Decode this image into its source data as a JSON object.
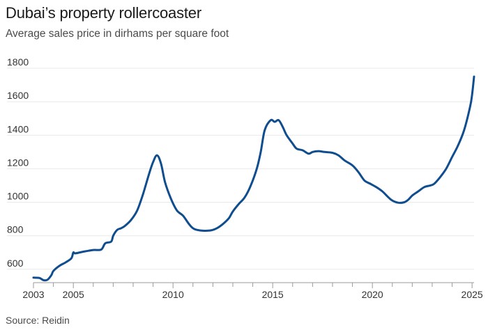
{
  "chart_data": {
    "type": "line",
    "title": "Dubai’s property rollercoaster",
    "subtitle": "Average sales price in dirhams per square foot",
    "source": "Source: Reidin",
    "xlabel": "",
    "ylabel": "",
    "ylim": [
      520,
      1800
    ],
    "xlim": [
      2003,
      2025.1
    ],
    "y_ticks": [
      600,
      800,
      1000,
      1200,
      1400,
      1600,
      1800
    ],
    "x_ticks": [
      {
        "label": "2003",
        "value": 2003
      },
      {
        "label": "2005",
        "value": 2005
      },
      {
        "label": "2010",
        "value": 2010
      },
      {
        "label": "2015",
        "value": 2015
      },
      {
        "label": "2020",
        "value": 2020
      },
      {
        "label": "2025",
        "value": 2025
      }
    ],
    "grid": true,
    "legend": "none",
    "color": "#0f4d8f",
    "series": [
      {
        "values": [
          [
            2003.0,
            550
          ],
          [
            2003.3,
            548
          ],
          [
            2003.5,
            535
          ],
          [
            2003.7,
            537
          ],
          [
            2003.9,
            565
          ],
          [
            2004.0,
            590
          ],
          [
            2004.3,
            620
          ],
          [
            2004.6,
            640
          ],
          [
            2004.9,
            665
          ],
          [
            2005.0,
            700
          ],
          [
            2005.1,
            695
          ],
          [
            2005.5,
            705
          ],
          [
            2006.0,
            715
          ],
          [
            2006.4,
            718
          ],
          [
            2006.6,
            755
          ],
          [
            2006.9,
            765
          ],
          [
            2007.0,
            800
          ],
          [
            2007.2,
            835
          ],
          [
            2007.4,
            845
          ],
          [
            2007.6,
            860
          ],
          [
            2007.9,
            895
          ],
          [
            2008.2,
            950
          ],
          [
            2008.5,
            1050
          ],
          [
            2008.8,
            1170
          ],
          [
            2009.0,
            1240
          ],
          [
            2009.2,
            1280
          ],
          [
            2009.4,
            1230
          ],
          [
            2009.6,
            1120
          ],
          [
            2009.9,
            1020
          ],
          [
            2010.2,
            950
          ],
          [
            2010.5,
            920
          ],
          [
            2010.8,
            870
          ],
          [
            2011.0,
            845
          ],
          [
            2011.2,
            835
          ],
          [
            2011.5,
            830
          ],
          [
            2011.9,
            832
          ],
          [
            2012.2,
            845
          ],
          [
            2012.5,
            870
          ],
          [
            2012.8,
            905
          ],
          [
            2013.0,
            945
          ],
          [
            2013.3,
            990
          ],
          [
            2013.6,
            1030
          ],
          [
            2013.9,
            1100
          ],
          [
            2014.2,
            1200
          ],
          [
            2014.4,
            1300
          ],
          [
            2014.6,
            1430
          ],
          [
            2014.9,
            1490
          ],
          [
            2015.1,
            1480
          ],
          [
            2015.3,
            1490
          ],
          [
            2015.5,
            1450
          ],
          [
            2015.7,
            1400
          ],
          [
            2016.0,
            1350
          ],
          [
            2016.2,
            1320
          ],
          [
            2016.5,
            1310
          ],
          [
            2016.8,
            1290
          ],
          [
            2017.0,
            1300
          ],
          [
            2017.3,
            1305
          ],
          [
            2017.6,
            1300
          ],
          [
            2018.0,
            1295
          ],
          [
            2018.3,
            1280
          ],
          [
            2018.6,
            1250
          ],
          [
            2019.0,
            1220
          ],
          [
            2019.3,
            1180
          ],
          [
            2019.6,
            1130
          ],
          [
            2019.9,
            1110
          ],
          [
            2020.2,
            1090
          ],
          [
            2020.5,
            1065
          ],
          [
            2020.8,
            1030
          ],
          [
            2021.0,
            1010
          ],
          [
            2021.3,
            997
          ],
          [
            2021.6,
            1000
          ],
          [
            2021.8,
            1015
          ],
          [
            2022.0,
            1040
          ],
          [
            2022.3,
            1065
          ],
          [
            2022.6,
            1090
          ],
          [
            2022.9,
            1100
          ],
          [
            2023.1,
            1110
          ],
          [
            2023.4,
            1150
          ],
          [
            2023.7,
            1200
          ],
          [
            2024.0,
            1270
          ],
          [
            2024.3,
            1340
          ],
          [
            2024.6,
            1430
          ],
          [
            2024.9,
            1570
          ],
          [
            2025.0,
            1640
          ],
          [
            2025.1,
            1750
          ]
        ]
      }
    ]
  }
}
